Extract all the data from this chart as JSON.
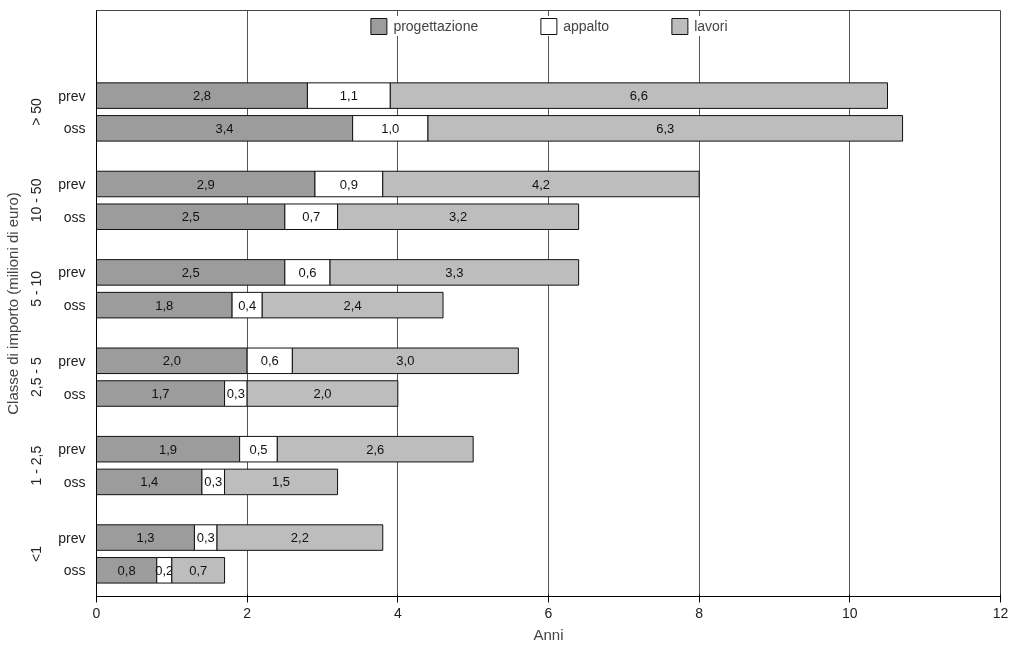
{
  "chart_data": {
    "type": "bar",
    "orientation": "horizontal",
    "stacked": true,
    "xlabel": "Anni",
    "ylabel": "Classe di importo (milioni di euro)",
    "categories": [
      "prev",
      "oss",
      "prev",
      "oss",
      "prev",
      "oss",
      "prev",
      "oss",
      "prev",
      "oss",
      "prev",
      "oss"
    ],
    "annotations": [
      "> 50",
      "10 - 50",
      "5 - 10",
      "2,5 - 5",
      "1 - 2,5",
      "<1"
    ],
    "series": [
      {
        "name": "progettazione",
        "color": "#9c9c9c",
        "values": [
          2.8,
          3.4,
          2.9,
          2.5,
          2.5,
          1.8,
          2.0,
          1.7,
          1.9,
          1.4,
          1.3,
          0.8
        ],
        "value_labels": [
          "2,8",
          "3,4",
          "2,9",
          "2,5",
          "2,5",
          "1,8",
          "2,0",
          "1,7",
          "1,9",
          "1,4",
          "1,3",
          "0,8"
        ]
      },
      {
        "name": "appalto",
        "color": "#ffffff",
        "values": [
          1.1,
          1.0,
          0.9,
          0.7,
          0.6,
          0.4,
          0.6,
          0.3,
          0.5,
          0.3,
          0.3,
          0.2
        ],
        "value_labels": [
          "1,1",
          "1,0",
          "0,9",
          "0,7",
          "0,6",
          "0,4",
          "0,6",
          "0,3",
          "0,5",
          "0,3",
          "0,3",
          "0,2"
        ]
      },
      {
        "name": "lavori",
        "color": "#bdbdbd",
        "values": [
          6.6,
          6.3,
          4.2,
          3.2,
          3.3,
          2.4,
          3.0,
          2.0,
          2.6,
          1.5,
          2.2,
          0.7
        ],
        "value_labels": [
          "6,6",
          "6,3",
          "4,2",
          "3,2",
          "3,3",
          "2,4",
          "3,0",
          "2,0",
          "2,6",
          "1,5",
          "2,2",
          "0,7"
        ]
      }
    ],
    "xlim": [
      0,
      12
    ],
    "xticks": [
      0,
      2,
      4,
      6,
      8,
      10,
      12
    ],
    "grid": "x",
    "legend": "top"
  }
}
